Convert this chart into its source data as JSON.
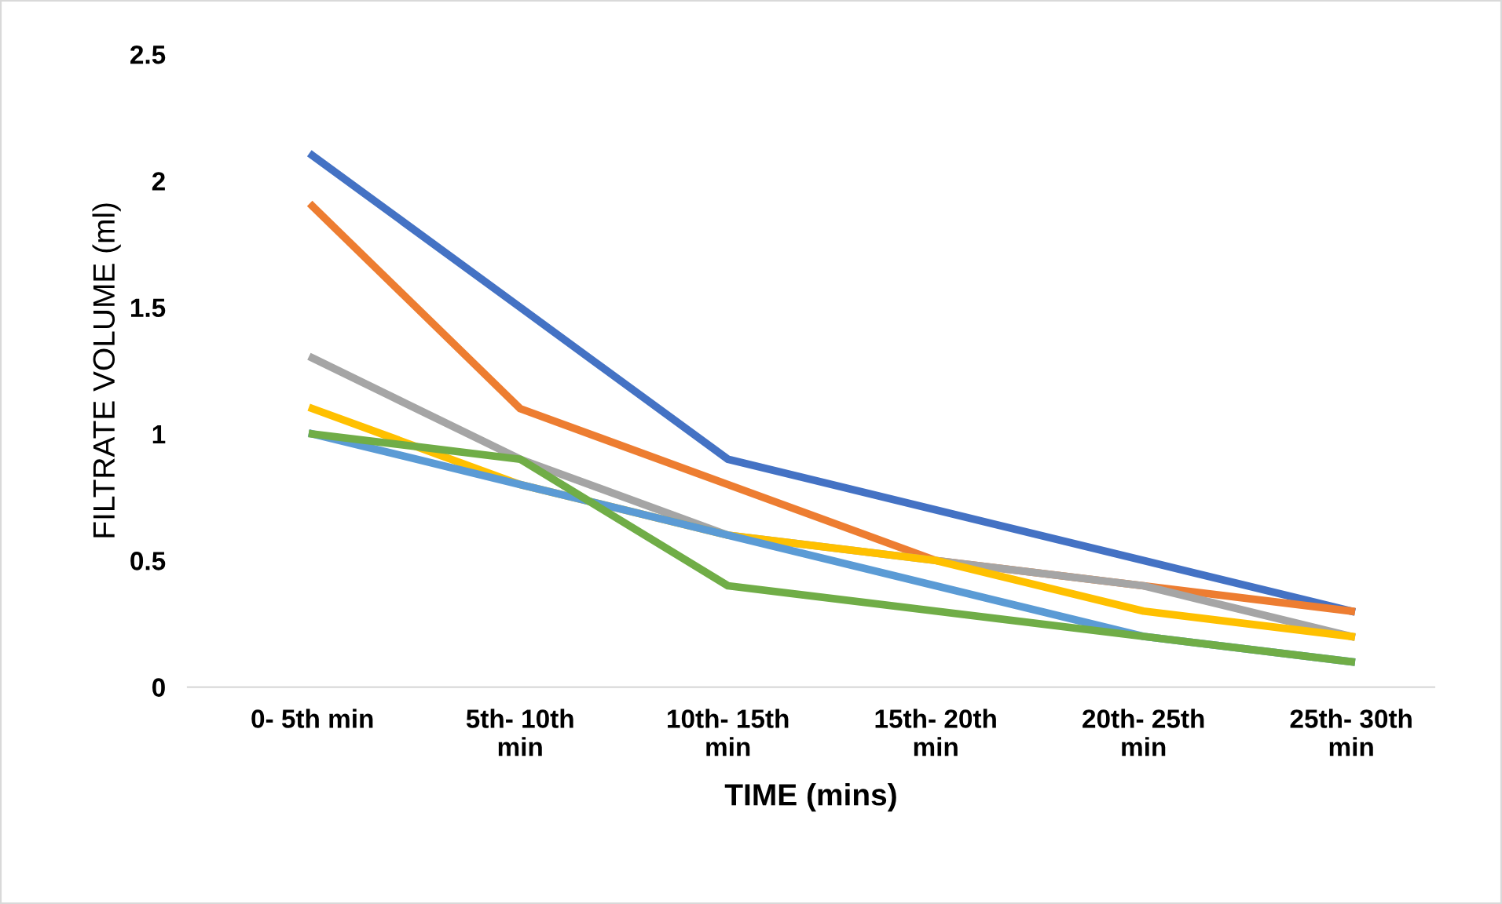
{
  "chart_data": {
    "type": "line",
    "xlabel": "TIME (mins)",
    "ylabel": "FILTRATE VOLUME (ml)",
    "categories": [
      "0- 5th min",
      "5th- 10th min",
      "10th- 15th min",
      "15th- 20th min",
      "20th- 25th min",
      "25th- 30th min"
    ],
    "series": [
      {
        "color": "#4472c4",
        "values": [
          2.1,
          1.5,
          0.9,
          0.7,
          0.5,
          0.3
        ]
      },
      {
        "color": "#ed7d31",
        "values": [
          1.9,
          1.1,
          0.8,
          0.5,
          0.4,
          0.3
        ]
      },
      {
        "color": "#a5a5a5",
        "values": [
          1.3,
          0.9,
          0.6,
          0.5,
          0.4,
          0.2
        ]
      },
      {
        "color": "#ffc000",
        "values": [
          1.1,
          0.8,
          0.6,
          0.5,
          0.3,
          0.2
        ]
      },
      {
        "color": "#5b9bd5",
        "values": [
          1.0,
          0.8,
          0.6,
          0.4,
          0.2,
          0.1
        ]
      },
      {
        "color": "#70ad47",
        "values": [
          1.0,
          0.9,
          0.4,
          0.3,
          0.2,
          0.1
        ]
      }
    ],
    "ylim": [
      0,
      2.5
    ],
    "yticks": [
      0,
      0.5,
      1,
      1.5,
      2,
      2.5
    ],
    "grid": false,
    "legend": false,
    "marker": "none",
    "line_style": "solid"
  }
}
